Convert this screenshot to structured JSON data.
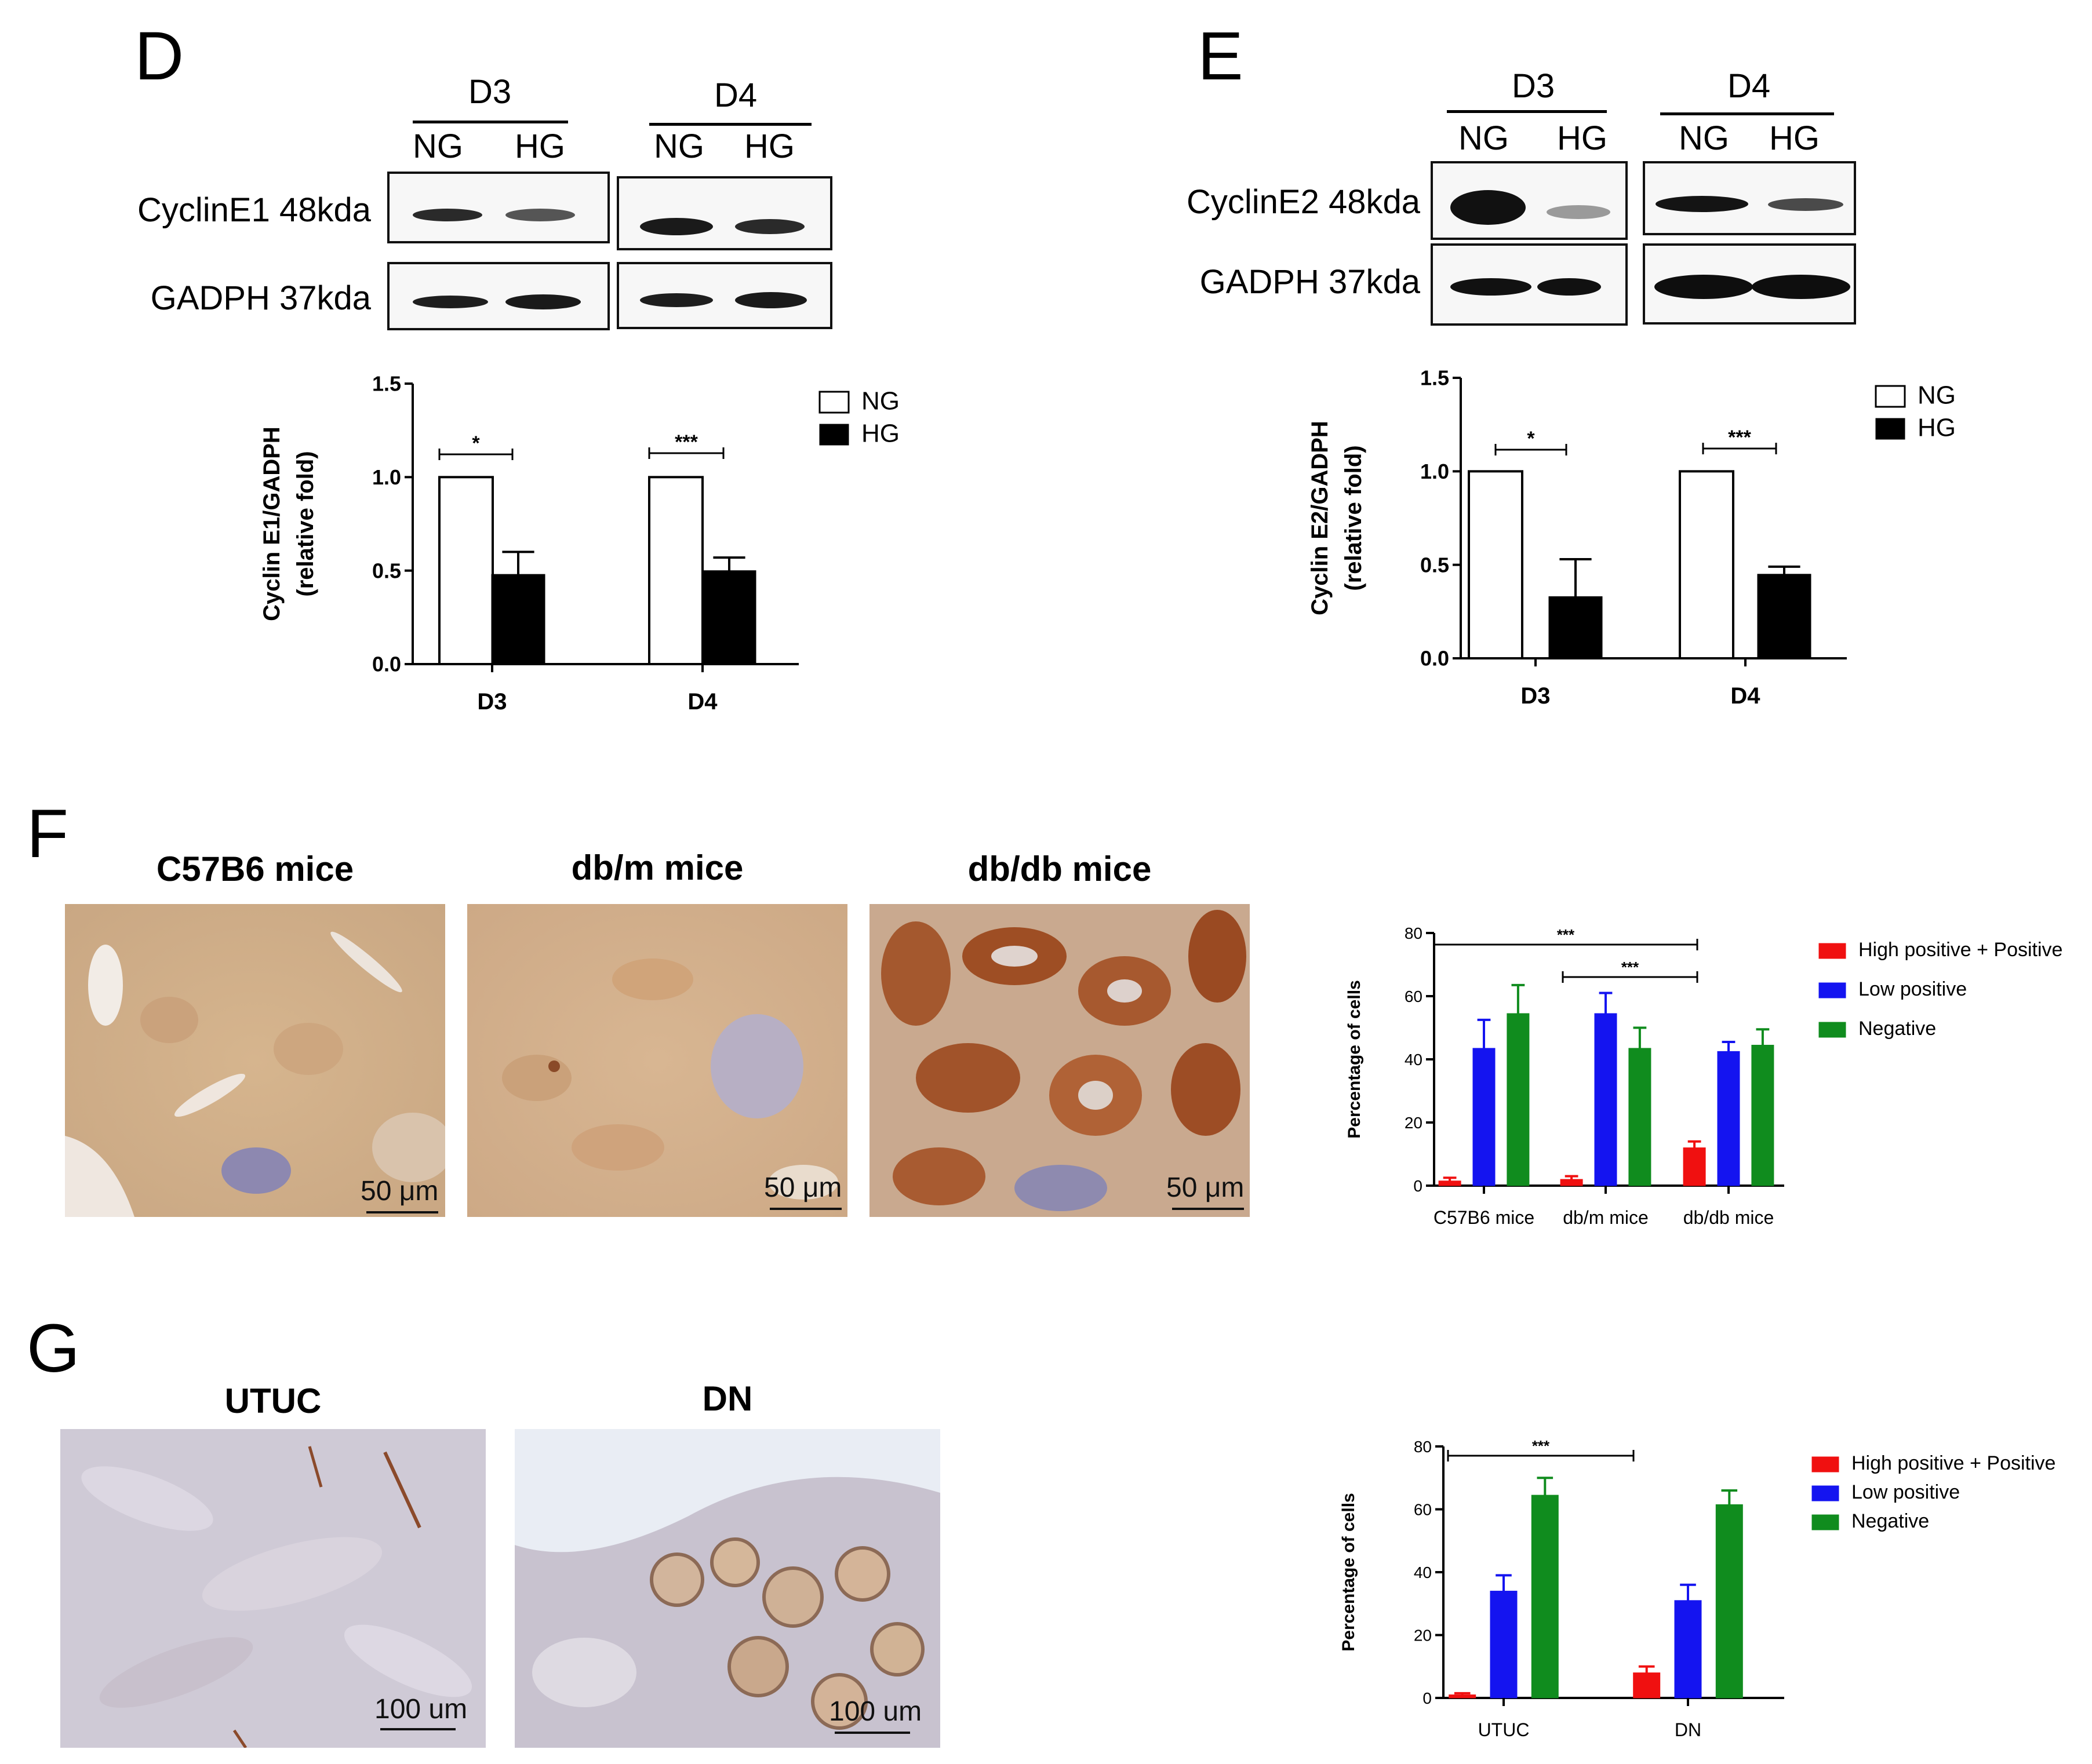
{
  "panels": {
    "D": {
      "label": "D",
      "blot": {
        "groups": [
          "D3",
          "D4"
        ],
        "lanes": [
          "NG",
          "HG"
        ],
        "rows": [
          "CyclinE1 48kda",
          "GADPH 37kda"
        ]
      }
    },
    "E": {
      "label": "E",
      "blot": {
        "groups": [
          "D3",
          "D4"
        ],
        "lanes": [
          "NG",
          "HG"
        ],
        "rows": [
          "CyclinE2 48kda",
          "GADPH 37kda"
        ]
      }
    },
    "F": {
      "label": "F",
      "images": [
        {
          "title": "C57B6 mice",
          "scale_label": "50 μm"
        },
        {
          "title": "db/m mice",
          "scale_label": "50 μm"
        },
        {
          "title": "db/db mice",
          "scale_label": "50 μm"
        }
      ]
    },
    "G": {
      "label": "G",
      "images": [
        {
          "title": "UTUC",
          "scale_label": "100 um"
        },
        {
          "title": "DN",
          "scale_label": "100 um"
        }
      ]
    }
  },
  "colors": {
    "red": "#f01010",
    "blue": "#1414f0",
    "green": "#108c1e",
    "black": "#000000",
    "white": "#ffffff"
  },
  "chart_data": [
    {
      "id": "D",
      "type": "bar",
      "categories": [
        "D3",
        "D4"
      ],
      "series": [
        {
          "name": "NG",
          "values": [
            1.0,
            1.0
          ],
          "errors": [
            0,
            0
          ],
          "color": "#ffffff"
        },
        {
          "name": "HG",
          "values": [
            0.48,
            0.5
          ],
          "errors": [
            0.12,
            0.07
          ],
          "color": "#000000"
        }
      ],
      "ylabel_lines": [
        "Cyclin E1/GADPH",
        "(relative fold)"
      ],
      "ylim": [
        0,
        1.5
      ],
      "yticks": [
        "0.0",
        "0.5",
        "1.0",
        "1.5"
      ],
      "significance": [
        "*",
        "***"
      ],
      "legend": "top-right"
    },
    {
      "id": "E",
      "type": "bar",
      "categories": [
        "D3",
        "D4"
      ],
      "series": [
        {
          "name": "NG",
          "values": [
            1.0,
            1.0
          ],
          "errors": [
            0,
            0
          ],
          "color": "#ffffff"
        },
        {
          "name": "HG",
          "values": [
            0.33,
            0.45
          ],
          "errors": [
            0.2,
            0.04
          ],
          "color": "#000000"
        }
      ],
      "ylabel_lines": [
        "Cyclin E2/GADPH",
        "(relative fold)"
      ],
      "ylim": [
        0,
        1.5
      ],
      "yticks": [
        "0.0",
        "0.5",
        "1.0",
        "1.5"
      ],
      "significance": [
        "*",
        "***"
      ],
      "legend": "top-right"
    },
    {
      "id": "F",
      "type": "bar",
      "categories": [
        "C57B6 mice",
        "db/m mice",
        "db/db mice"
      ],
      "series": [
        {
          "name": "High positive + Positive",
          "values": [
            1.5,
            2,
            12
          ],
          "errors": [
            1,
            1,
            2
          ],
          "color": "#f01010"
        },
        {
          "name": "Low positive",
          "values": [
            43.5,
            54.5,
            42.5
          ],
          "errors": [
            9,
            6.5,
            3
          ],
          "color": "#1414f0"
        },
        {
          "name": "Negative",
          "values": [
            54.5,
            43.5,
            44.5
          ],
          "errors": [
            9,
            6.5,
            5
          ],
          "color": "#108c1e"
        }
      ],
      "ylabel": "Percentage of cells",
      "ylim": [
        0,
        80
      ],
      "yticks": [
        "0",
        "20",
        "40",
        "60",
        "80"
      ],
      "significance": [
        "***",
        "***"
      ],
      "legend": "right"
    },
    {
      "id": "G",
      "type": "bar",
      "categories": [
        "UTUC",
        "DN"
      ],
      "series": [
        {
          "name": "High positive + Positive",
          "values": [
            1,
            8
          ],
          "errors": [
            0.5,
            2
          ],
          "color": "#f01010"
        },
        {
          "name": "Low positive",
          "values": [
            34,
            31
          ],
          "errors": [
            5,
            5
          ],
          "color": "#1414f0"
        },
        {
          "name": "Negative",
          "values": [
            64.5,
            61.5
          ],
          "errors": [
            5.5,
            4.5
          ],
          "color": "#108c1e"
        }
      ],
      "ylabel": "Percentage of cells",
      "ylim": [
        0,
        80
      ],
      "yticks": [
        "0",
        "20",
        "40",
        "60",
        "80"
      ],
      "significance": [
        "***"
      ],
      "legend": "right"
    }
  ]
}
